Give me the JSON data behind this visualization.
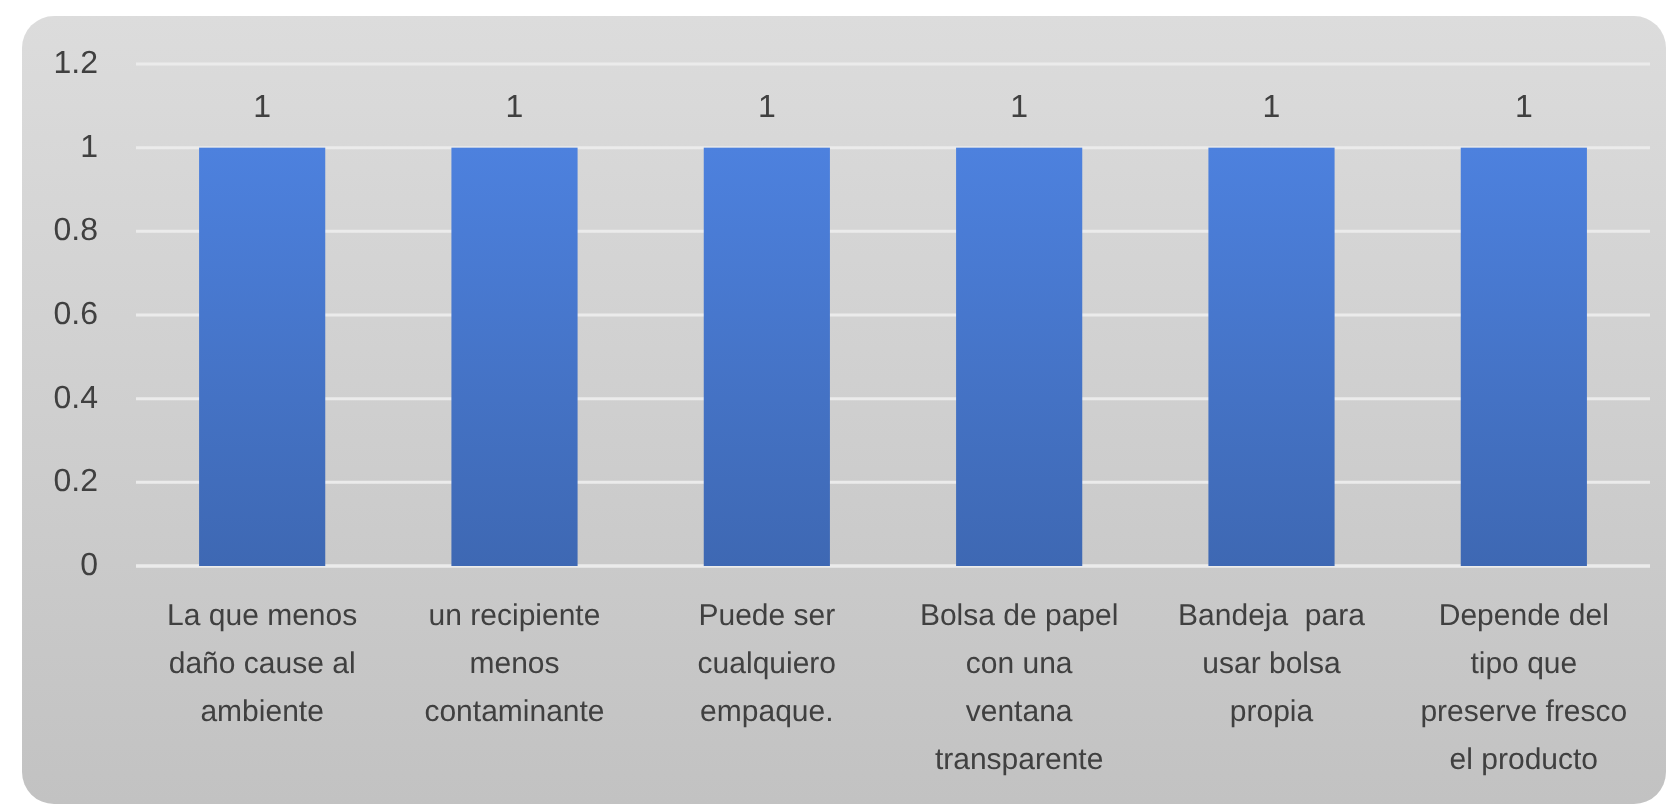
{
  "chart_data": {
    "type": "bar",
    "categories": [
      "La que menos daño cause al ambiente",
      "un recipiente menos contaminante",
      "Puede ser cualquiero empaque.",
      "Bolsa de papel con una ventana transparente",
      "Bandeja  para usar bolsa propia",
      "Depende del tipo que preserve fresco el producto"
    ],
    "values": [
      1,
      1,
      1,
      1,
      1,
      1
    ],
    "color": "#4472c4",
    "ylim": [
      0,
      1.2
    ],
    "yticks": [
      0,
      0.2,
      0.4,
      0.6,
      0.8,
      1,
      1.2
    ],
    "grid": "y",
    "data_labels": true
  }
}
